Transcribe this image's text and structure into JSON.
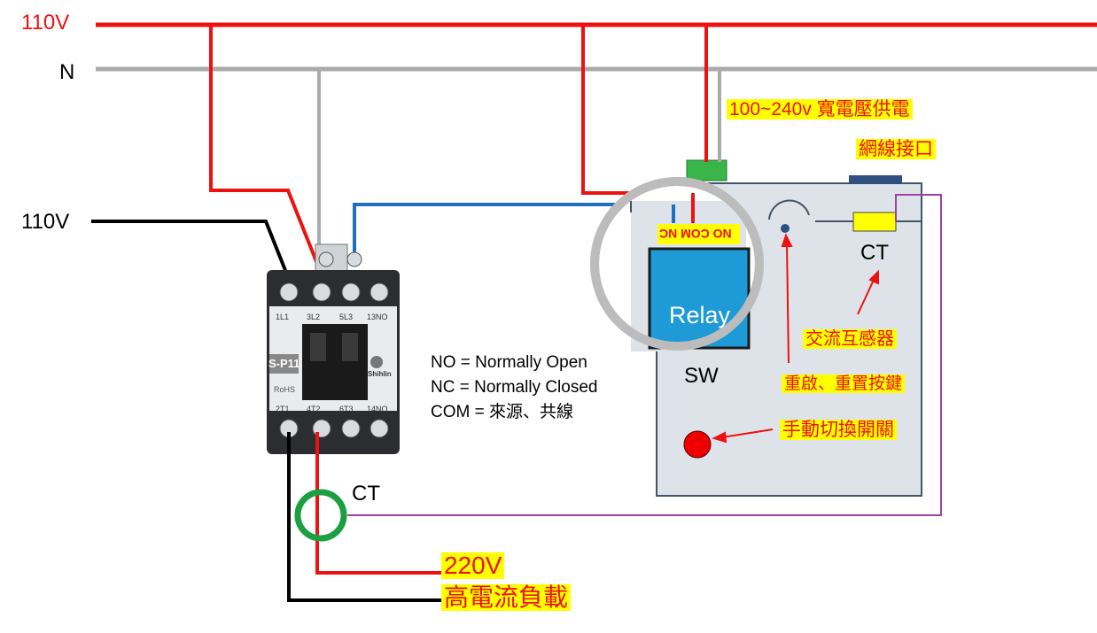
{
  "labels": {
    "line_110v_top": "110V",
    "neutral": "N",
    "line_110v_left": "110V",
    "power_supply": "100~240v 寬電壓供電",
    "network_port": "網線接口",
    "relay_terminals": "NO COM NC",
    "relay": "Relay",
    "sw": "SW",
    "ct_module": "CT",
    "ac_transformer": "交流互感器",
    "restart_button": "重啟、重置按鍵",
    "manual_switch": "手動切換開關",
    "ct_load": "CT",
    "load_voltage": "220V",
    "load_desc": "高電流負載"
  },
  "legend": {
    "no": "NO = Normally Open",
    "nc": "NC = Normally Closed",
    "com": "COM = 來源、共線"
  },
  "contactor": {
    "model": "S-P11",
    "brand": "Shihlin",
    "rohs": "RoHS",
    "top_terminals": [
      "1L1",
      "3L2",
      "5L3",
      "13NO"
    ],
    "bottom_terminals": [
      "2T1",
      "4T2",
      "6T3",
      "14NO"
    ]
  },
  "colors": {
    "live": "#ee1111",
    "neutral": "#aaaaaa",
    "black": "#000000",
    "control": "#1f6fc0",
    "ct_signal": "#a040a0",
    "ct_ring": "#1aa040",
    "highlight": "#ffff00",
    "relay_fill": "#1e9ad6",
    "module_fill": "#dde3e8"
  }
}
